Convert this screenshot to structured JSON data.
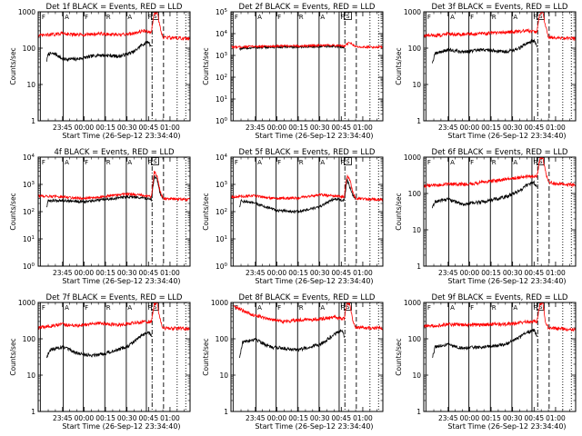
{
  "figure": {
    "xlabel": "Start Time (26-Sep-12 23:34:40)",
    "ylabel": "Counts/sec",
    "x_ticks": [
      {
        "t": 0,
        "label": "23:45"
      },
      {
        "t": 15,
        "label": "00:00"
      },
      {
        "t": 30,
        "label": "00:15"
      },
      {
        "t": 45,
        "label": "00:30"
      },
      {
        "t": 60,
        "label": "00:45"
      },
      {
        "t": 75,
        "label": "01:00"
      }
    ],
    "x_range_minutes": [
      -17,
      89
    ],
    "vertical_markers": [
      {
        "t": -15.5,
        "style": "solid"
      },
      {
        "t": 0.5,
        "style": "solid"
      },
      {
        "t": 14.5,
        "style": "solid"
      },
      {
        "t": 29.5,
        "style": "solid"
      },
      {
        "t": 44.5,
        "style": "solid"
      },
      {
        "t": 58.5,
        "style": "solid"
      },
      {
        "t": 62.5,
        "style": "dashdot"
      },
      {
        "t": 70.5,
        "style": "dash"
      },
      {
        "t": 80,
        "style": "dot"
      },
      {
        "t": 86,
        "style": "dot"
      }
    ],
    "flag_labels": [
      "F",
      "A",
      "F",
      "R",
      "A",
      "F"
    ],
    "saa_label": "S"
  },
  "chart_data": [
    {
      "type": "line",
      "title": "Det 1f BLACK = Events, RED = LLD",
      "yscale": "log",
      "ylim": [
        1,
        1000
      ],
      "series": [
        {
          "name": "Events",
          "color": "#000000",
          "values": [
            [
              -11,
              45
            ],
            [
              -10,
              70
            ],
            [
              -5,
              70
            ],
            [
              0,
              50
            ],
            [
              10,
              50
            ],
            [
              25,
              65
            ],
            [
              40,
              60
            ],
            [
              50,
              80
            ],
            [
              55,
              120
            ],
            [
              60,
              150
            ],
            [
              62,
              110
            ]
          ]
        },
        {
          "name": "LLD",
          "color": "#ff0000",
          "values": [
            [
              -17,
              220
            ],
            [
              -5,
              240
            ],
            [
              0,
              260
            ],
            [
              10,
              230
            ],
            [
              25,
              250
            ],
            [
              40,
              230
            ],
            [
              50,
              260
            ],
            [
              56,
              300
            ],
            [
              62,
              280
            ],
            [
              64,
              900
            ],
            [
              66,
              1000
            ],
            [
              68,
              400
            ],
            [
              70,
              200
            ],
            [
              89,
              180
            ]
          ]
        }
      ]
    },
    {
      "type": "line",
      "title": "Det 2f BLACK = Events, RED = LLD",
      "yscale": "log",
      "ylim": [
        1,
        100000
      ],
      "series": [
        {
          "name": "Events",
          "color": "#000000",
          "values": [
            [
              -11,
              2000
            ],
            [
              0,
              2300
            ],
            [
              20,
              2400
            ],
            [
              40,
              2500
            ],
            [
              55,
              2600
            ],
            [
              62,
              2400
            ]
          ]
        },
        {
          "name": "LLD",
          "color": "#ff0000",
          "values": [
            [
              -17,
              2400
            ],
            [
              0,
              2600
            ],
            [
              20,
              2700
            ],
            [
              40,
              2800
            ],
            [
              55,
              2900
            ],
            [
              62,
              2700
            ],
            [
              66,
              4000
            ],
            [
              68,
              3000
            ],
            [
              70,
              2500
            ],
            [
              89,
              2400
            ]
          ]
        }
      ]
    },
    {
      "type": "line",
      "title": "Det 3f BLACK = Events, RED = LLD",
      "yscale": "log",
      "ylim": [
        1,
        1000
      ],
      "series": [
        {
          "name": "Events",
          "color": "#000000",
          "values": [
            [
              -11,
              40
            ],
            [
              -9,
              70
            ],
            [
              -5,
              80
            ],
            [
              0,
              90
            ],
            [
              10,
              80
            ],
            [
              25,
              90
            ],
            [
              40,
              80
            ],
            [
              50,
              100
            ],
            [
              55,
              140
            ],
            [
              60,
              160
            ],
            [
              62,
              110
            ]
          ]
        },
        {
          "name": "LLD",
          "color": "#ff0000",
          "values": [
            [
              -17,
              220
            ],
            [
              -5,
              230
            ],
            [
              0,
              250
            ],
            [
              15,
              240
            ],
            [
              30,
              260
            ],
            [
              45,
              280
            ],
            [
              55,
              300
            ],
            [
              62,
              280
            ],
            [
              64,
              900
            ],
            [
              66,
              1000
            ],
            [
              68,
              400
            ],
            [
              70,
              200
            ],
            [
              89,
              180
            ]
          ]
        }
      ]
    },
    {
      "type": "line",
      "title": "4f BLACK = Events, RED = LLD",
      "yscale": "log",
      "ylim": [
        1,
        10000
      ],
      "series": [
        {
          "name": "Events",
          "color": "#000000",
          "values": [
            [
              -11,
              150
            ],
            [
              -10,
              250
            ],
            [
              0,
              260
            ],
            [
              15,
              230
            ],
            [
              30,
              280
            ],
            [
              45,
              350
            ],
            [
              55,
              330
            ],
            [
              62,
              280
            ],
            [
              64,
              2000
            ],
            [
              66,
              1500
            ],
            [
              68,
              500
            ],
            [
              70,
              300
            ]
          ]
        },
        {
          "name": "LLD",
          "color": "#ff0000",
          "values": [
            [
              -17,
              380
            ],
            [
              0,
              350
            ],
            [
              15,
              300
            ],
            [
              30,
              370
            ],
            [
              45,
              450
            ],
            [
              55,
              400
            ],
            [
              62,
              350
            ],
            [
              64,
              3000
            ],
            [
              66,
              2000
            ],
            [
              68,
              600
            ],
            [
              70,
              300
            ],
            [
              89,
              280
            ]
          ]
        }
      ]
    },
    {
      "type": "line",
      "title": "Det 5f BLACK = Events, RED = LLD",
      "yscale": "log",
      "ylim": [
        1,
        10000
      ],
      "series": [
        {
          "name": "Events",
          "color": "#000000",
          "values": [
            [
              -11,
              150
            ],
            [
              -10,
              250
            ],
            [
              0,
              200
            ],
            [
              15,
              110
            ],
            [
              30,
              100
            ],
            [
              45,
              150
            ],
            [
              55,
              300
            ],
            [
              62,
              250
            ],
            [
              64,
              1500
            ],
            [
              66,
              800
            ],
            [
              68,
              400
            ],
            [
              70,
              300
            ]
          ]
        },
        {
          "name": "LLD",
          "color": "#ff0000",
          "values": [
            [
              -17,
              350
            ],
            [
              0,
              380
            ],
            [
              15,
              300
            ],
            [
              30,
              320
            ],
            [
              45,
              420
            ],
            [
              55,
              380
            ],
            [
              62,
              350
            ],
            [
              64,
              2000
            ],
            [
              66,
              1500
            ],
            [
              68,
              500
            ],
            [
              70,
              300
            ],
            [
              89,
              280
            ]
          ]
        }
      ]
    },
    {
      "type": "line",
      "title": "Det 6f BLACK = Events, RED = LLD",
      "yscale": "log",
      "ylim": [
        1,
        1000
      ],
      "series": [
        {
          "name": "Events",
          "color": "#000000",
          "values": [
            [
              -11,
              40
            ],
            [
              -9,
              60
            ],
            [
              0,
              70
            ],
            [
              10,
              50
            ],
            [
              25,
              60
            ],
            [
              40,
              80
            ],
            [
              50,
              120
            ],
            [
              55,
              170
            ],
            [
              60,
              200
            ],
            [
              62,
              150
            ]
          ]
        },
        {
          "name": "LLD",
          "color": "#ff0000",
          "values": [
            [
              -17,
              160
            ],
            [
              0,
              180
            ],
            [
              15,
              180
            ],
            [
              30,
              220
            ],
            [
              45,
              260
            ],
            [
              55,
              300
            ],
            [
              62,
              300
            ],
            [
              64,
              900
            ],
            [
              66,
              1000
            ],
            [
              68,
              400
            ],
            [
              70,
              200
            ],
            [
              89,
              170
            ]
          ]
        }
      ]
    },
    {
      "type": "line",
      "title": "Det 7f BLACK = Events, RED = LLD",
      "yscale": "log",
      "ylim": [
        1,
        1000
      ],
      "series": [
        {
          "name": "Events",
          "color": "#000000",
          "values": [
            [
              -11,
              30
            ],
            [
              -9,
              50
            ],
            [
              0,
              60
            ],
            [
              10,
              40
            ],
            [
              20,
              35
            ],
            [
              30,
              40
            ],
            [
              45,
              60
            ],
            [
              55,
              120
            ],
            [
              60,
              150
            ],
            [
              62,
              120
            ]
          ]
        },
        {
          "name": "LLD",
          "color": "#ff0000",
          "values": [
            [
              -17,
              200
            ],
            [
              0,
              250
            ],
            [
              10,
              230
            ],
            [
              25,
              270
            ],
            [
              40,
              240
            ],
            [
              50,
              280
            ],
            [
              62,
              300
            ],
            [
              64,
              900
            ],
            [
              66,
              1000
            ],
            [
              68,
              350
            ],
            [
              70,
              200
            ],
            [
              89,
              190
            ]
          ]
        }
      ]
    },
    {
      "type": "line",
      "title": "Det 8f BLACK = Events, RED = LLD",
      "yscale": "log",
      "ylim": [
        1,
        1000
      ],
      "series": [
        {
          "name": "Events",
          "color": "#000000",
          "values": [
            [
              -11,
              30
            ],
            [
              -9,
              80
            ],
            [
              0,
              100
            ],
            [
              10,
              60
            ],
            [
              20,
              55
            ],
            [
              30,
              50
            ],
            [
              45,
              70
            ],
            [
              55,
              130
            ],
            [
              60,
              170
            ],
            [
              62,
              120
            ]
          ]
        },
        {
          "name": "LLD",
          "color": "#ff0000",
          "values": [
            [
              -15,
              800
            ],
            [
              -5,
              500
            ],
            [
              0,
              450
            ],
            [
              10,
              350
            ],
            [
              20,
              300
            ],
            [
              30,
              330
            ],
            [
              45,
              350
            ],
            [
              55,
              400
            ],
            [
              62,
              350
            ],
            [
              64,
              1000
            ],
            [
              66,
              900
            ],
            [
              68,
              300
            ],
            [
              70,
              200
            ],
            [
              89,
              200
            ]
          ]
        }
      ]
    },
    {
      "type": "line",
      "title": "Det 9f BLACK = Events, RED = LLD",
      "yscale": "log",
      "ylim": [
        1,
        1000
      ],
      "series": [
        {
          "name": "Events",
          "color": "#000000",
          "values": [
            [
              -11,
              30
            ],
            [
              -9,
              60
            ],
            [
              0,
              70
            ],
            [
              10,
              55
            ],
            [
              25,
              60
            ],
            [
              40,
              70
            ],
            [
              50,
              110
            ],
            [
              55,
              150
            ],
            [
              60,
              170
            ],
            [
              62,
              120
            ]
          ]
        },
        {
          "name": "LLD",
          "color": "#ff0000",
          "values": [
            [
              -17,
              220
            ],
            [
              0,
              250
            ],
            [
              15,
              240
            ],
            [
              30,
              250
            ],
            [
              45,
              260
            ],
            [
              55,
              300
            ],
            [
              62,
              300
            ],
            [
              64,
              900
            ],
            [
              66,
              1000
            ],
            [
              68,
              300
            ],
            [
              70,
              200
            ],
            [
              89,
              180
            ]
          ]
        }
      ]
    }
  ]
}
